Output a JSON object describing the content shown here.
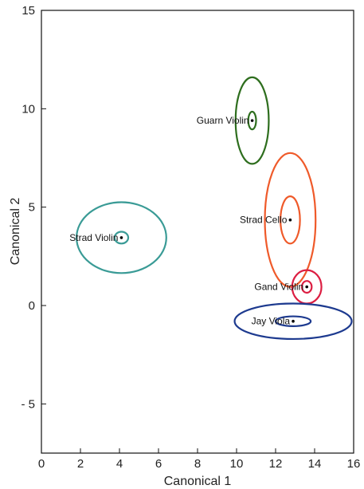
{
  "chart_data": {
    "type": "scatter",
    "xlabel": "Canonical 1",
    "ylabel": "Canonical 2",
    "xlim": [
      0,
      16
    ],
    "ylim": [
      -7.5,
      15
    ],
    "x_ticks": [
      0,
      2,
      4,
      6,
      8,
      10,
      12,
      14,
      16
    ],
    "y_ticks": [
      15,
      10,
      5,
      0,
      -5
    ],
    "y_tick_labels": [
      "15",
      "10",
      "5",
      "0",
      "- 5"
    ],
    "grid": false,
    "groups": [
      {
        "name": "Guarn Violin",
        "color": "#2e6e1e",
        "center": [
          10.8,
          9.4
        ],
        "inner_ellipse": {
          "rx": 0.2,
          "ry": 0.45
        },
        "outer_ellipse": {
          "rx": 0.85,
          "ry": 2.2
        }
      },
      {
        "name": "Strad Cello",
        "color": "#ef5a2a",
        "center": [
          12.75,
          4.35
        ],
        "inner_ellipse": {
          "rx": 0.5,
          "ry": 1.2
        },
        "outer_ellipse": {
          "rx": 1.3,
          "ry": 3.4
        }
      },
      {
        "name": "Strad Violin",
        "color": "#3a9b96",
        "center": [
          4.1,
          3.45
        ],
        "inner_ellipse": {
          "rx": 0.35,
          "ry": 0.3
        },
        "outer_ellipse": {
          "rx": 2.3,
          "ry": 1.8
        }
      },
      {
        "name": "Gand Violin",
        "color": "#dc1e42",
        "center": [
          13.6,
          0.95
        ],
        "inner_ellipse": {
          "rx": 0.25,
          "ry": 0.3
        },
        "outer_ellipse": {
          "rx": 0.75,
          "ry": 0.85
        }
      },
      {
        "name": "Jay Viola",
        "color": "#1d3a8f",
        "center": [
          12.9,
          -0.8
        ],
        "inner_ellipse": {
          "rx": 0.9,
          "ry": 0.25
        },
        "outer_ellipse": {
          "rx": 3.0,
          "ry": 0.9
        }
      }
    ]
  }
}
